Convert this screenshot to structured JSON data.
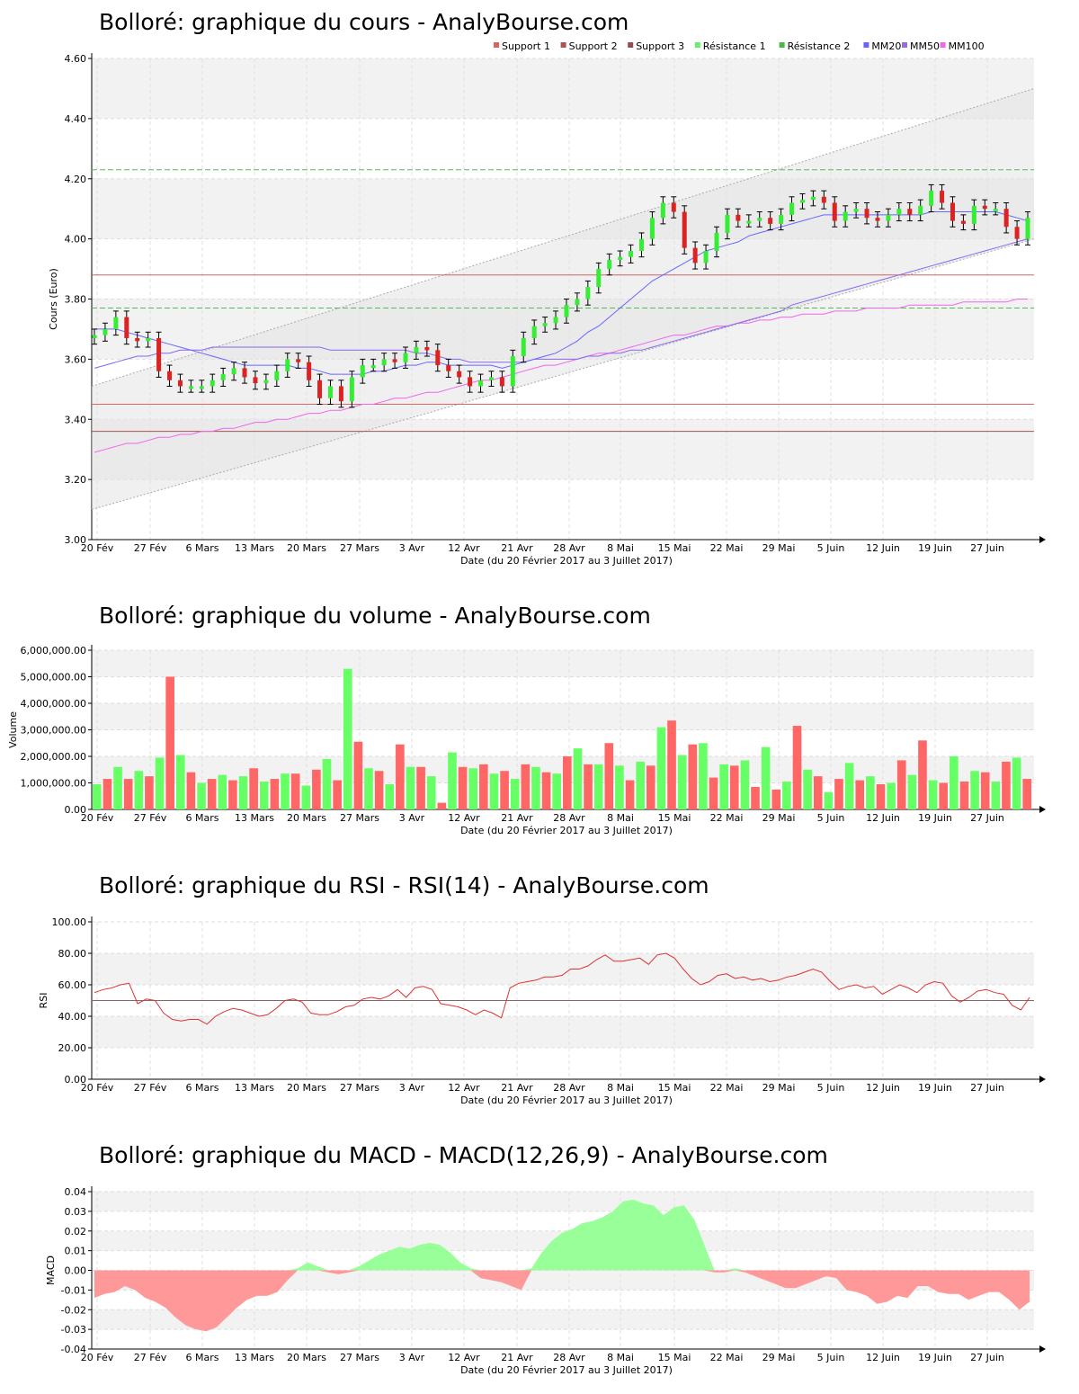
{
  "chart_data": [
    {
      "type": "candlestick",
      "title": "Bolloré: graphique du cours - AnalyBourse.com",
      "ylabel": "Cours (Euro)",
      "xlabel": "Date (du 20 Février 2017 au 3 Juillet 2017)",
      "ylim": [
        3.0,
        4.6
      ],
      "yticks": [
        "3.00",
        "3.20",
        "3.40",
        "3.60",
        "3.80",
        "4.00",
        "4.20",
        "4.40",
        "4.60"
      ],
      "xtick_labels": [
        "20 Fév",
        "27 Fév",
        "6 Mars",
        "13 Mars",
        "20 Mars",
        "27 Mars",
        "3 Avr",
        "12 Avr",
        "21 Avr",
        "28 Avr",
        "8 Mai",
        "15 Mai",
        "22 Mai",
        "29 Mai",
        "5 Juin",
        "12 Juin",
        "19 Juin",
        "27 Juin"
      ],
      "legend": [
        {
          "name": "Support 1",
          "color": "#e06060"
        },
        {
          "name": "Support 2",
          "color": "#b05050"
        },
        {
          "name": "Support 3",
          "color": "#905050"
        },
        {
          "name": "Résistance 1",
          "color": "#66ee66"
        },
        {
          "name": "Résistance 2",
          "color": "#44bb44"
        },
        {
          "name": "MM20",
          "color": "#6666ff"
        },
        {
          "name": "MM50",
          "color": "#9966ee"
        },
        {
          "name": "MM100",
          "color": "#ee66ee"
        }
      ],
      "levels": {
        "support1": 3.45,
        "support2": 3.36,
        "support3": 3.88,
        "resistance1": 4.23,
        "resistance2": 3.77
      },
      "channel": {
        "upper": [
          3.51,
          4.5
        ],
        "lower": [
          3.1,
          4.0
        ]
      },
      "close": [
        3.68,
        3.7,
        3.74,
        3.67,
        3.66,
        3.67,
        3.56,
        3.53,
        3.51,
        3.51,
        3.51,
        3.53,
        3.55,
        3.57,
        3.54,
        3.52,
        3.53,
        3.56,
        3.6,
        3.59,
        3.53,
        3.47,
        3.51,
        3.46,
        3.54,
        3.58,
        3.58,
        3.6,
        3.59,
        3.62,
        3.64,
        3.63,
        3.58,
        3.56,
        3.54,
        3.51,
        3.53,
        3.54,
        3.51,
        3.61,
        3.67,
        3.71,
        3.72,
        3.74,
        3.78,
        3.8,
        3.84,
        3.9,
        3.93,
        3.94,
        3.96,
        4.0,
        4.07,
        4.12,
        4.09,
        3.97,
        3.92,
        3.96,
        4.02,
        4.08,
        4.06,
        4.06,
        4.07,
        4.05,
        4.08,
        4.12,
        4.13,
        4.14,
        4.12,
        4.06,
        4.09,
        4.1,
        4.07,
        4.06,
        4.08,
        4.1,
        4.08,
        4.11,
        4.16,
        4.12,
        4.06,
        4.05,
        4.11,
        4.1,
        4.1,
        4.04,
        4.0,
        4.07
      ],
      "mm20": [
        3.7,
        3.7,
        3.7,
        3.69,
        3.68,
        3.67,
        3.66,
        3.65,
        3.64,
        3.63,
        3.62,
        3.61,
        3.6,
        3.59,
        3.58,
        3.58,
        3.58,
        3.58,
        3.58,
        3.57,
        3.57,
        3.56,
        3.55,
        3.55,
        3.55,
        3.55,
        3.56,
        3.56,
        3.57,
        3.58,
        3.58,
        3.59,
        3.59,
        3.58,
        3.58,
        3.58,
        3.58,
        3.58,
        3.57,
        3.58,
        3.59,
        3.6,
        3.61,
        3.62,
        3.64,
        3.66,
        3.69,
        3.71,
        3.74,
        3.77,
        3.8,
        3.83,
        3.86,
        3.88,
        3.9,
        3.92,
        3.94,
        3.96,
        3.97,
        3.98,
        3.99,
        4.01,
        4.02,
        4.03,
        4.04,
        4.05,
        4.06,
        4.07,
        4.08,
        4.08,
        4.08,
        4.08,
        4.08,
        4.08,
        4.08,
        4.08,
        4.08,
        4.08,
        4.09,
        4.09,
        4.09,
        4.09,
        4.09,
        4.09,
        4.09,
        4.08,
        4.07,
        4.06
      ],
      "mm50": [
        3.57,
        3.58,
        3.59,
        3.6,
        3.61,
        3.61,
        3.62,
        3.62,
        3.63,
        3.63,
        3.63,
        3.64,
        3.64,
        3.64,
        3.64,
        3.64,
        3.64,
        3.64,
        3.64,
        3.64,
        3.64,
        3.64,
        3.63,
        3.63,
        3.63,
        3.63,
        3.63,
        3.63,
        3.63,
        3.63,
        3.62,
        3.62,
        3.61,
        3.6,
        3.6,
        3.59,
        3.59,
        3.59,
        3.59,
        3.59,
        3.59,
        3.6,
        3.6,
        3.6,
        3.6,
        3.6,
        3.61,
        3.61,
        3.62,
        3.62,
        3.63,
        3.63,
        3.64,
        3.65,
        3.66,
        3.67,
        3.68,
        3.69,
        3.7,
        3.71,
        3.72,
        3.73,
        3.74,
        3.75,
        3.76,
        3.78,
        3.79,
        3.8,
        3.81,
        3.82,
        3.83,
        3.84,
        3.85,
        3.86,
        3.87,
        3.88,
        3.89,
        3.9,
        3.91,
        3.92,
        3.93,
        3.94,
        3.95,
        3.96,
        3.97,
        3.98,
        3.99,
        4.0
      ],
      "mm100": [
        3.29,
        3.3,
        3.31,
        3.32,
        3.32,
        3.33,
        3.34,
        3.34,
        3.35,
        3.35,
        3.36,
        3.36,
        3.37,
        3.37,
        3.38,
        3.39,
        3.39,
        3.4,
        3.4,
        3.41,
        3.42,
        3.42,
        3.43,
        3.43,
        3.44,
        3.45,
        3.45,
        3.46,
        3.47,
        3.47,
        3.48,
        3.49,
        3.49,
        3.5,
        3.51,
        3.52,
        3.53,
        3.53,
        3.54,
        3.55,
        3.56,
        3.57,
        3.58,
        3.58,
        3.59,
        3.6,
        3.61,
        3.62,
        3.62,
        3.63,
        3.64,
        3.65,
        3.66,
        3.67,
        3.68,
        3.68,
        3.69,
        3.7,
        3.71,
        3.71,
        3.72,
        3.72,
        3.73,
        3.73,
        3.74,
        3.74,
        3.75,
        3.75,
        3.75,
        3.76,
        3.76,
        3.76,
        3.77,
        3.77,
        3.77,
        3.77,
        3.78,
        3.78,
        3.78,
        3.78,
        3.78,
        3.79,
        3.79,
        3.79,
        3.79,
        3.79,
        3.8,
        3.8
      ]
    },
    {
      "type": "bar",
      "title": "Bolloré: graphique du volume - AnalyBourse.com",
      "ylabel": "Volume",
      "xlabel": "Date (du 20 Février 2017 au 3 Juillet 2017)",
      "ylim": [
        0,
        6000000
      ],
      "yticks": [
        "0.00",
        "1,000,000.00",
        "2,000,000.00",
        "3,000,000.00",
        "4,000,000.00",
        "5,000,000.00",
        "6,000,000.00"
      ],
      "xtick_labels": [
        "20 Fév",
        "27 Fév",
        "6 Mars",
        "13 Mars",
        "20 Mars",
        "27 Mars",
        "3 Avr",
        "12 Avr",
        "21 Avr",
        "28 Avr",
        "8 Mai",
        "15 Mai",
        "22 Mai",
        "29 Mai",
        "5 Juin",
        "12 Juin",
        "19 Juin",
        "27 Juin"
      ],
      "values": [
        950000,
        1150000,
        1600000,
        1150000,
        1450000,
        1250000,
        1950000,
        5000000,
        2050000,
        1400000,
        1000000,
        1150000,
        1300000,
        1100000,
        1250000,
        1550000,
        1050000,
        1150000,
        1350000,
        1350000,
        900000,
        1500000,
        1900000,
        1100000,
        5300000,
        2550000,
        1550000,
        1450000,
        950000,
        2450000,
        1600000,
        1600000,
        1250000,
        250000,
        2150000,
        1600000,
        1550000,
        1700000,
        1350000,
        1450000,
        1150000,
        1700000,
        1600000,
        1400000,
        1350000,
        2000000,
        2300000,
        1700000,
        1700000,
        2500000,
        1650000,
        1100000,
        1800000,
        1650000,
        3100000,
        3350000,
        2050000,
        2450000,
        2500000,
        1200000,
        1700000,
        1650000,
        1850000,
        850000,
        2350000,
        750000,
        1050000,
        3150000,
        1500000,
        1250000,
        650000,
        1150000,
        1750000,
        1100000,
        1250000,
        950000,
        1000000,
        1850000,
        1300000,
        2600000,
        1100000,
        1000000,
        2000000,
        1050000,
        1450000,
        1400000,
        1050000,
        1800000,
        1950000,
        1150000
      ],
      "colors_up": "#66ff66",
      "colors_down": "#ff6666"
    },
    {
      "type": "line",
      "title": "Bolloré: graphique du RSI - RSI(14) - AnalyBourse.com",
      "ylabel": "RSI",
      "xlabel": "Date (du 20 Février 2017 au 3 Juillet 2017)",
      "ylim": [
        0,
        100
      ],
      "yticks": [
        "0.00",
        "20.00",
        "40.00",
        "60.00",
        "80.00",
        "100.00"
      ],
      "xtick_labels": [
        "20 Fév",
        "27 Fév",
        "6 Mars",
        "13 Mars",
        "20 Mars",
        "27 Mars",
        "3 Avr",
        "12 Avr",
        "21 Avr",
        "28 Avr",
        "8 Mai",
        "15 Mai",
        "22 Mai",
        "29 Mai",
        "5 Juin",
        "12 Juin",
        "19 Juin",
        "27 Juin"
      ],
      "reference": 50,
      "values": [
        55,
        57,
        58,
        60,
        61,
        48,
        51,
        50,
        42,
        38,
        37,
        38,
        38,
        35,
        40,
        43,
        45,
        44,
        42,
        40,
        41,
        45,
        50,
        51,
        49,
        42,
        41,
        41,
        43,
        46,
        47,
        51,
        52,
        51,
        53,
        57,
        52,
        58,
        59,
        57,
        48,
        47,
        46,
        44,
        41,
        44,
        42,
        39,
        58,
        61,
        62,
        63,
        65,
        65,
        66,
        70,
        70,
        72,
        76,
        79,
        75,
        75,
        76,
        77,
        73,
        79,
        80,
        77,
        70,
        64,
        60,
        62,
        66,
        67,
        64,
        65,
        63,
        64,
        62,
        63,
        65,
        66,
        68,
        70,
        68,
        62,
        57,
        59,
        60,
        58,
        59,
        54,
        57,
        60,
        58,
        55,
        60,
        62,
        61,
        53,
        49,
        52,
        56,
        57,
        55,
        54,
        47,
        44,
        52
      ]
    },
    {
      "type": "area",
      "title": "Bolloré: graphique du MACD - MACD(12,26,9) - AnalyBourse.com",
      "ylabel": "MACD",
      "xlabel": "Date (du 20 Février 2017 au 3 Juillet 2017)",
      "ylim": [
        -0.04,
        0.04
      ],
      "yticks": [
        "-0.04",
        "-0.03",
        "-0.02",
        "-0.01",
        "0.00",
        "0.01",
        "0.02",
        "0.03",
        "0.04"
      ],
      "xtick_labels": [
        "20 Fév",
        "27 Fév",
        "6 Mars",
        "13 Mars",
        "20 Mars",
        "27 Mars",
        "3 Avr",
        "12 Avr",
        "21 Avr",
        "28 Avr",
        "8 Mai",
        "15 Mai",
        "22 Mai",
        "29 Mai",
        "5 Juin",
        "12 Juin",
        "19 Juin",
        "27 Juin"
      ],
      "values": [
        -0.014,
        -0.012,
        -0.011,
        -0.008,
        -0.01,
        -0.014,
        -0.016,
        -0.019,
        -0.024,
        -0.028,
        -0.03,
        -0.031,
        -0.029,
        -0.024,
        -0.019,
        -0.015,
        -0.013,
        -0.013,
        -0.011,
        -0.005,
        0.001,
        0.004,
        0.002,
        -0.001,
        -0.002,
        -0.001,
        0.002,
        0.005,
        0.008,
        0.01,
        0.012,
        0.011,
        0.013,
        0.014,
        0.013,
        0.009,
        0.004,
        0.001,
        -0.004,
        -0.005,
        -0.006,
        -0.008,
        -0.01,
        0.001,
        0.009,
        0.015,
        0.019,
        0.021,
        0.024,
        0.025,
        0.027,
        0.03,
        0.035,
        0.036,
        0.034,
        0.033,
        0.028,
        0.032,
        0.033,
        0.026,
        0.013,
        -0.001,
        -0.001,
        0.001,
        -0.001,
        -0.003,
        -0.005,
        -0.007,
        -0.009,
        -0.009,
        -0.007,
        -0.005,
        -0.003,
        -0.004,
        -0.01,
        -0.011,
        -0.013,
        -0.017,
        -0.016,
        -0.013,
        -0.014,
        -0.008,
        -0.008,
        -0.011,
        -0.012,
        -0.012,
        -0.015,
        -0.013,
        -0.011,
        -0.011,
        -0.015,
        -0.02,
        -0.016
      ]
    }
  ]
}
